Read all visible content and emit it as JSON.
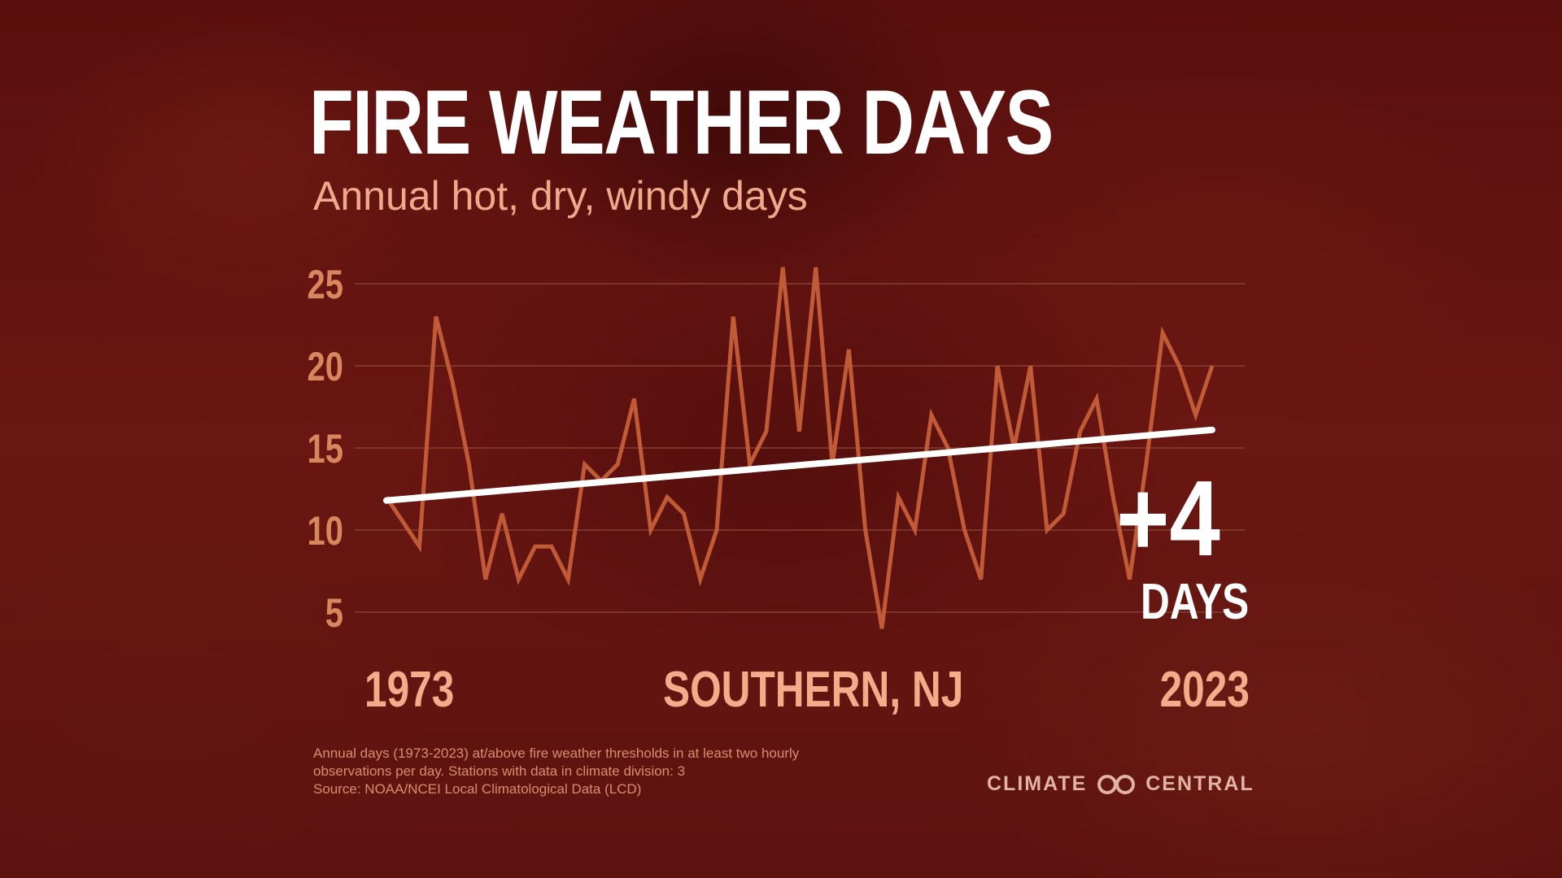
{
  "title": "FIRE WEATHER DAYS",
  "subtitle": "Annual hot, dry, windy days",
  "location": "SOUTHERN, NJ",
  "change_value": "+4",
  "change_unit": "DAYS",
  "footnote": [
    "Annual days (1973-2023) at/above fire weather thresholds in at least two hourly",
    "observations per day. Stations with data in climate division: 3",
    "Source: NOAA/NCEI Local Climatological Data (LCD)"
  ],
  "logo_text_left": "CLIMATE",
  "logo_text_right": "CENTRAL",
  "colors": {
    "series": "#c05a37",
    "trend": "#ffffff",
    "grid": "#8d4a3a",
    "label": "#f4ab8a"
  },
  "chart_data": {
    "type": "line",
    "title": "FIRE WEATHER DAYS",
    "subtitle": "Annual hot, dry, windy days",
    "xlabel": "",
    "ylabel": "",
    "ylim": [
      3,
      26
    ],
    "yticks": [
      5,
      10,
      15,
      20,
      25
    ],
    "x_tick_labels": [
      "1973",
      "2023"
    ],
    "grid": true,
    "x": [
      1973,
      1974,
      1975,
      1976,
      1977,
      1978,
      1979,
      1980,
      1981,
      1982,
      1983,
      1984,
      1985,
      1986,
      1987,
      1988,
      1989,
      1990,
      1991,
      1992,
      1993,
      1994,
      1995,
      1996,
      1997,
      1998,
      1999,
      2000,
      2001,
      2002,
      2003,
      2004,
      2005,
      2006,
      2007,
      2008,
      2009,
      2010,
      2011,
      2012,
      2013,
      2014,
      2015,
      2016,
      2017,
      2018,
      2019,
      2020,
      2021,
      2022,
      2023
    ],
    "series": [
      {
        "name": "Annual fire weather days",
        "values": [
          12,
          10.5,
          9,
          23,
          19,
          14,
          7,
          11,
          7,
          9,
          9,
          7,
          14,
          13,
          14,
          18,
          10,
          12,
          11,
          7,
          10,
          23,
          14,
          16,
          26,
          16,
          26,
          14,
          21,
          10,
          4,
          12,
          10,
          17,
          15,
          10,
          7,
          20,
          15,
          20,
          10,
          11,
          16,
          18,
          12,
          7,
          14,
          22,
          20,
          17,
          20
        ]
      },
      {
        "name": "Trend",
        "values": [
          11.8,
          16.1
        ],
        "x": [
          1973,
          2023
        ]
      }
    ],
    "annotation": "+4 DAYS"
  }
}
